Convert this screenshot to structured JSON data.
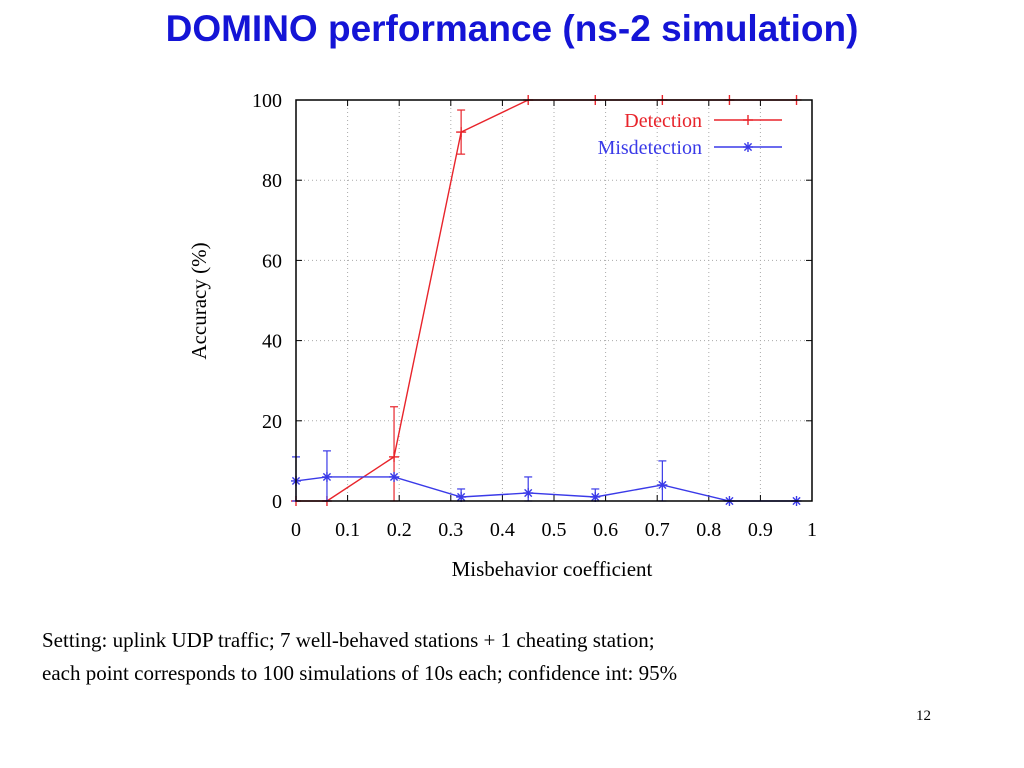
{
  "slide": {
    "title": "DOMINO performance (ns-2 simulation)",
    "caption_line1": "Setting: uplink UDP traffic; 7 well-behaved stations + 1 cheating station;",
    "caption_line2": "each point corresponds to 100 simulations of 10s each; confidence int: 95%",
    "page_number": "12"
  },
  "chart_data": {
    "type": "line",
    "xlabel": "Misbehavior coefficient",
    "ylabel": "Accuracy (%)",
    "xlim": [
      0,
      1
    ],
    "ylim": [
      0,
      100
    ],
    "x_ticks": [
      0,
      0.1,
      0.2,
      0.3,
      0.4,
      0.5,
      0.6,
      0.7,
      0.8,
      0.9,
      1
    ],
    "x_tick_labels": [
      "0",
      "0.1",
      "0.2",
      "0.3",
      "0.4",
      "0.5",
      "0.6",
      "0.7",
      "0.8",
      "0.9",
      "1"
    ],
    "y_ticks": [
      0,
      20,
      40,
      60,
      80,
      100
    ],
    "y_tick_labels": [
      "0",
      "20",
      "40",
      "60",
      "80",
      "100"
    ],
    "grid": true,
    "legend_position": "top-right",
    "series": [
      {
        "name": "Detection",
        "color": "#e8242b",
        "marker": "plus",
        "x": [
          0,
          0.06,
          0.19,
          0.32,
          0.45,
          0.58,
          0.71,
          0.84,
          0.97
        ],
        "y": [
          0,
          0,
          11,
          92,
          100,
          100,
          100,
          100,
          100
        ],
        "err": [
          0,
          0,
          12.5,
          5.5,
          0,
          0,
          0,
          0,
          0
        ]
      },
      {
        "name": "Misdetection",
        "color": "#3a3ae8",
        "marker": "star",
        "x": [
          0,
          0.06,
          0.19,
          0.32,
          0.45,
          0.58,
          0.71,
          0.84,
          0.97
        ],
        "y": [
          5,
          6,
          6,
          1,
          2,
          1,
          4,
          0,
          0
        ],
        "err": [
          6,
          6.5,
          0,
          2,
          4,
          2,
          6,
          0,
          0
        ]
      }
    ]
  }
}
